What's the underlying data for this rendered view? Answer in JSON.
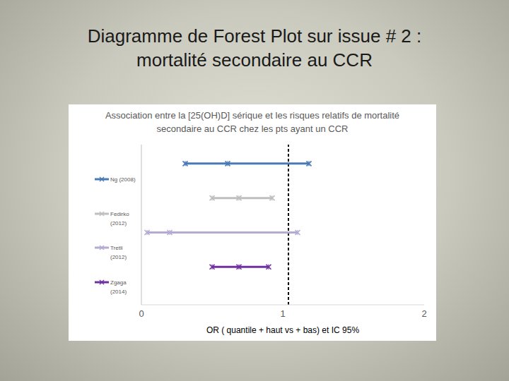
{
  "slide_title": [
    "Diagramme de Forest Plot sur issue # 2 :",
    "mortalité secondaire au CCR"
  ],
  "chart_data": {
    "type": "forest",
    "title": "Association entre la [25(OH)D] sérique et les risques relatifs de mortalité secondaire au CCR chez les pts ayant un CCR",
    "x_label": "OR ( quantile + haut vs + bas) et IC 95%",
    "xlim": [
      0,
      2
    ],
    "xticks": [
      0,
      1,
      2
    ],
    "reference_line": 1.04,
    "legend": "left",
    "tick_labels": "x",
    "line_style": "dashed",
    "series": [
      {
        "name": "Ng (2008)",
        "color": "#4a7ab5",
        "value": 0.61,
        "ci_low": 0.31,
        "ci_high": 1.185
      },
      {
        "name": "Fedirko (2012)",
        "color": "#bfbfbf",
        "value": 0.69,
        "ci_low": 0.5,
        "ci_high": 0.925
      },
      {
        "name": "Tretli (2012)",
        "color": "#b4aad2",
        "value": 0.2,
        "ci_low": 0.04,
        "ci_high": 1.105
      },
      {
        "name": "Zgaga (2014)",
        "color": "#7030a0",
        "value": 0.69,
        "ci_low": 0.5,
        "ci_high": 0.9
      }
    ]
  }
}
